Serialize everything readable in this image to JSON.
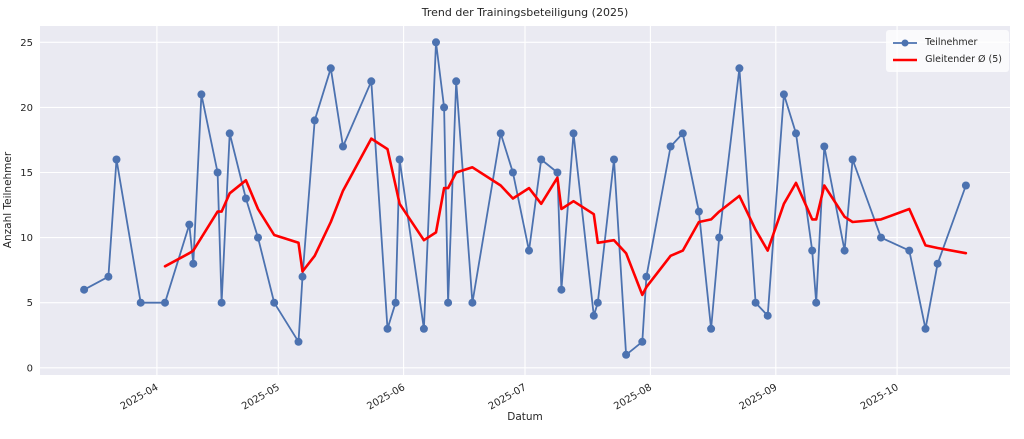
{
  "figure": {
    "title": "Trend der Trainingsbeteiligung (2025)",
    "xlabel": "Datum",
    "ylabel": "Anzahl Teilnehmer"
  },
  "legend": {
    "position": "upper right",
    "items": [
      "Teilnehmer",
      "Gleitender Ø (5)"
    ]
  },
  "colors": {
    "series_blue": "#4c72b0",
    "series_red": "#ff0000",
    "plot_bg": "#eaeaf2",
    "grid": "#ffffff",
    "text": "#262626",
    "figure_bg": "#ffffff"
  },
  "chart_data": {
    "type": "line",
    "title": "Trend der Trainingsbeteiligung (2025)",
    "xlabel": "Datum",
    "ylabel": "Anzahl Teilnehmer",
    "ylim": [
      -0.55,
      26.25
    ],
    "yticks": [
      0,
      5,
      10,
      15,
      20,
      25
    ],
    "xticks": [
      "2025-04",
      "2025-05",
      "2025-06",
      "2025-07",
      "2025-08",
      "2025-09",
      "2025-10"
    ],
    "grid": true,
    "legend_position": "upper right",
    "x_dates": [
      "2025-03-14",
      "2025-03-20",
      "2025-03-22",
      "2025-03-28",
      "2025-04-03",
      "2025-04-09",
      "2025-04-10",
      "2025-04-12",
      "2025-04-16",
      "2025-04-17",
      "2025-04-19",
      "2025-04-23",
      "2025-04-26",
      "2025-04-30",
      "2025-05-06",
      "2025-05-07",
      "2025-05-10",
      "2025-05-14",
      "2025-05-17",
      "2025-05-24",
      "2025-05-28",
      "2025-05-30",
      "2025-05-31",
      "2025-06-06",
      "2025-06-09",
      "2025-06-11",
      "2025-06-12",
      "2025-06-14",
      "2025-06-18",
      "2025-06-25",
      "2025-06-28",
      "2025-07-02",
      "2025-07-05",
      "2025-07-09",
      "2025-07-10",
      "2025-07-13",
      "2025-07-18",
      "2025-07-19",
      "2025-07-23",
      "2025-07-26",
      "2025-07-30",
      "2025-07-31",
      "2025-08-06",
      "2025-08-09",
      "2025-08-13",
      "2025-08-16",
      "2025-08-18",
      "2025-08-23",
      "2025-08-27",
      "2025-08-30",
      "2025-09-03",
      "2025-09-06",
      "2025-09-10",
      "2025-09-11",
      "2025-09-13",
      "2025-09-18",
      "2025-09-20",
      "2025-09-27",
      "2025-10-04",
      "2025-10-08",
      "2025-10-11",
      "2025-10-18"
    ],
    "series": [
      {
        "name": "Teilnehmer",
        "color": "#4c72b0",
        "style": "line+marker",
        "values": [
          6,
          7,
          16,
          5,
          5,
          11,
          8,
          21,
          15,
          5,
          18,
          13,
          10,
          5,
          2,
          7,
          19,
          23,
          17,
          22,
          3,
          5,
          16,
          3,
          25,
          20,
          5,
          22,
          5,
          18,
          15,
          9,
          16,
          15,
          6,
          18,
          4,
          5,
          16,
          1,
          2,
          7,
          17,
          18,
          12,
          3,
          10,
          23,
          5,
          4,
          21,
          18,
          9,
          5,
          17,
          9,
          16,
          10,
          9,
          3,
          8,
          14
        ]
      },
      {
        "name": "Gleitender Ø (5)",
        "color": "#ff0000",
        "style": "line",
        "derived": "rolling mean, window 5, of Teilnehmer (starts at 5th point)",
        "values": [
          7.8,
          8.8,
          9.0,
          10.0,
          12.0,
          12.0,
          13.4,
          14.4,
          12.2,
          10.2,
          9.6,
          7.4,
          8.6,
          11.2,
          13.6,
          17.6,
          16.8,
          14.0,
          12.6,
          9.8,
          10.4,
          13.8,
          13.8,
          15.0,
          15.4,
          14.0,
          13.0,
          13.8,
          12.6,
          14.6,
          12.2,
          12.8,
          11.8,
          9.6,
          9.8,
          8.8,
          5.6,
          6.2,
          8.6,
          9.0,
          11.2,
          11.4,
          12.0,
          13.2,
          10.6,
          9.0,
          12.6,
          14.2,
          11.4,
          11.4,
          14.0,
          11.6,
          11.2,
          11.4,
          12.2,
          9.4,
          9.2,
          8.8
        ]
      }
    ]
  }
}
